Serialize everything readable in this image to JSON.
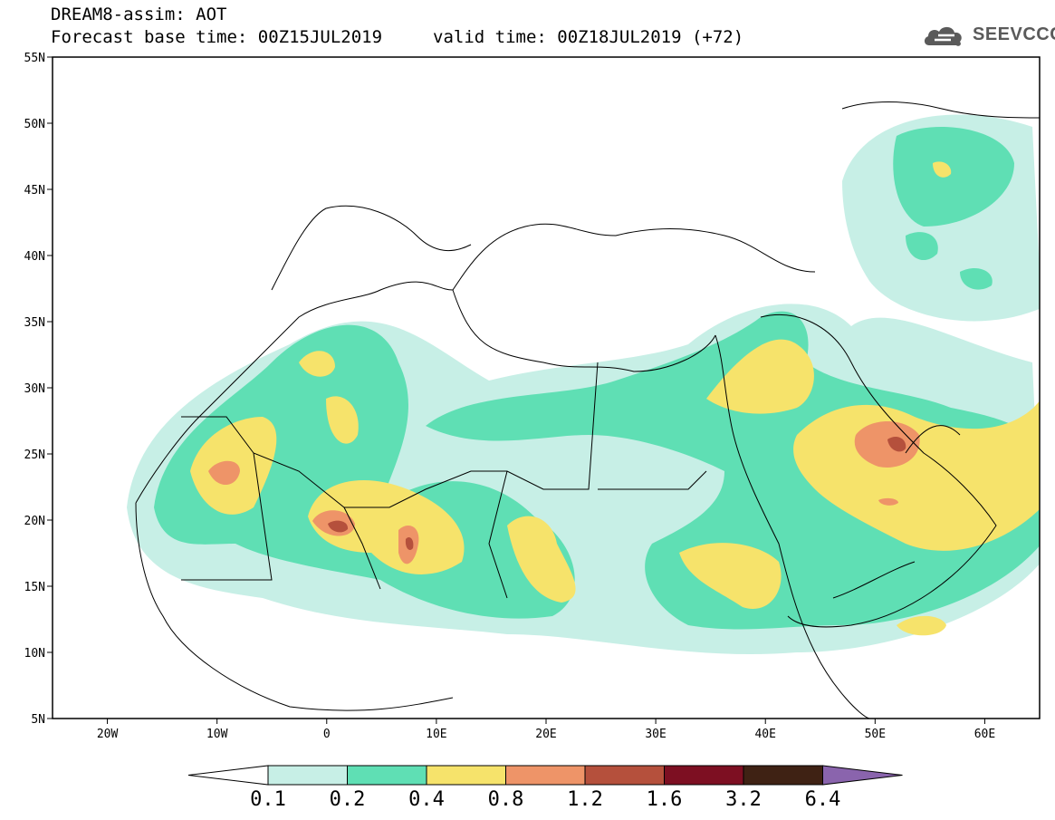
{
  "header": {
    "model_line": "DREAM8-assim: AOT",
    "base_time_line": "Forecast base time: 00Z15JUL2019",
    "valid_time_line": "valid time: 00Z18JUL2019 (+72)"
  },
  "logo": {
    "text": "SEEVCCC",
    "icon": "cloud-logo-icon"
  },
  "map": {
    "lon_range": [
      -25,
      65
    ],
    "lat_range": [
      5,
      55
    ],
    "lat_ticks": [
      {
        "value": 55,
        "label": "55N"
      },
      {
        "value": 50,
        "label": "50N"
      },
      {
        "value": 45,
        "label": "45N"
      },
      {
        "value": 40,
        "label": "40N"
      },
      {
        "value": 35,
        "label": "35N"
      },
      {
        "value": 30,
        "label": "30N"
      },
      {
        "value": 25,
        "label": "25N"
      },
      {
        "value": 20,
        "label": "20N"
      },
      {
        "value": 15,
        "label": "15N"
      },
      {
        "value": 10,
        "label": "10N"
      },
      {
        "value": 5,
        "label": "5N"
      }
    ],
    "lon_ticks": [
      {
        "value": -20,
        "label": "20W"
      },
      {
        "value": -10,
        "label": "10W"
      },
      {
        "value": 0,
        "label": "0"
      },
      {
        "value": 10,
        "label": "10E"
      },
      {
        "value": 20,
        "label": "20E"
      },
      {
        "value": 30,
        "label": "30E"
      },
      {
        "value": 40,
        "label": "40E"
      },
      {
        "value": 50,
        "label": "50E"
      },
      {
        "value": 60,
        "label": "60E"
      }
    ]
  },
  "colorbar": {
    "labels": [
      "0.1",
      "0.2",
      "0.4",
      "0.8",
      "1.2",
      "1.6",
      "3.2",
      "6.4"
    ],
    "colors": [
      "#ffffff",
      "#c7efe6",
      "#5fdfb4",
      "#f6e36b",
      "#ee9468",
      "#b5503c",
      "#7d0f22",
      "#3f2214",
      "#8a64ad"
    ]
  }
}
